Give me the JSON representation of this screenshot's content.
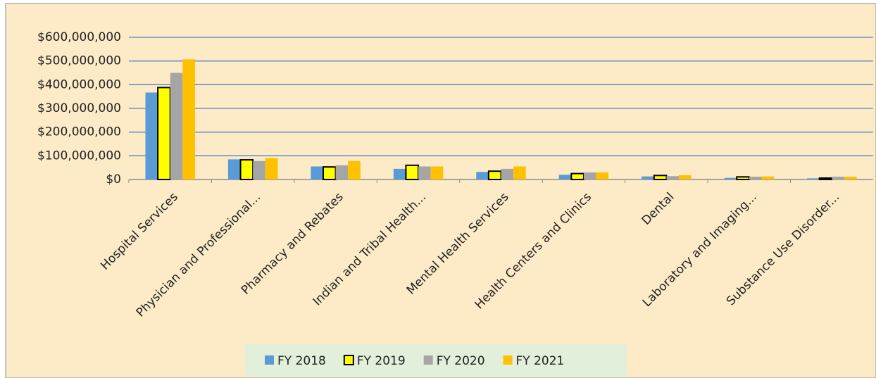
{
  "chart_data": {
    "type": "bar",
    "categories": [
      "Hospital Services",
      "Physician and Professional...",
      "Pharmacy and Rebates",
      "Indian and Tribal Health...",
      "Mental Health Services",
      "Health Centers and Clinics",
      "Dental",
      "Laboratory and Imaging...",
      "Substance Use Disorder..."
    ],
    "series": [
      {
        "name": "FY 2018",
        "color": "#5b9bd5",
        "values": [
          367000000,
          85000000,
          55000000,
          45000000,
          32000000,
          20000000,
          13000000,
          7000000,
          5000000
        ]
      },
      {
        "name": "FY 2019",
        "color": "#ffff00",
        "values": [
          388000000,
          83000000,
          53000000,
          60000000,
          35000000,
          25000000,
          17000000,
          11000000,
          6000000
        ]
      },
      {
        "name": "FY 2020",
        "color": "#a5a5a5",
        "values": [
          450000000,
          78000000,
          60000000,
          55000000,
          45000000,
          30000000,
          14000000,
          12000000,
          12000000
        ]
      },
      {
        "name": "FY 2021",
        "color": "#ffc000",
        "values": [
          507000000,
          90000000,
          78000000,
          55000000,
          55000000,
          30000000,
          18000000,
          13000000,
          12000000
        ]
      }
    ],
    "ylim": [
      0,
      600000000
    ],
    "yticks": [
      {
        "value": 0,
        "label": "$0"
      },
      {
        "value": 100000000,
        "label": "$100,000,000"
      },
      {
        "value": 200000000,
        "label": "$200,000,000"
      },
      {
        "value": 300000000,
        "label": "$300,000,000"
      },
      {
        "value": 400000000,
        "label": "$400,000,000"
      },
      {
        "value": 500000000,
        "label": "$500,000,000"
      },
      {
        "value": 600000000,
        "label": "$600,000,000"
      }
    ],
    "grid": true,
    "legend": "bottom"
  }
}
